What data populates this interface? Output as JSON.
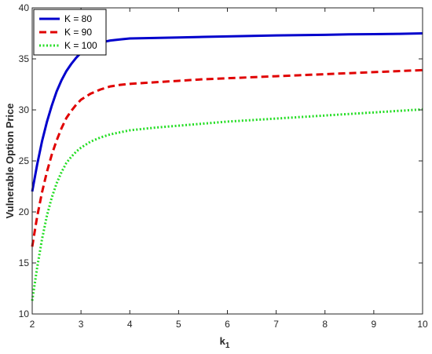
{
  "chart_data": {
    "type": "line",
    "title": "",
    "xlabel": "k",
    "xlabel_subscript": "1",
    "ylabel": "Vulnerable Option Price",
    "xlim": [
      2,
      10
    ],
    "ylim": [
      10,
      40
    ],
    "xticks": [
      2,
      3,
      4,
      5,
      6,
      7,
      8,
      9,
      10
    ],
    "yticks": [
      10,
      15,
      20,
      25,
      30,
      35,
      40
    ],
    "grid": false,
    "legend_position": "top-left",
    "x": [
      2.0,
      2.1,
      2.2,
      2.3,
      2.4,
      2.5,
      2.6,
      2.7,
      2.8,
      2.9,
      3.0,
      3.2,
      3.4,
      3.6,
      3.8,
      4.0,
      4.5,
      5.0,
      5.5,
      6.0,
      6.5,
      7.0,
      7.5,
      8.0,
      8.5,
      9.0,
      9.5,
      10.0
    ],
    "series": [
      {
        "name": "K = 80",
        "color": "#0000cc",
        "style": "solid",
        "values": [
          22.0,
          24.6,
          26.9,
          28.8,
          30.4,
          31.8,
          32.9,
          33.8,
          34.5,
          35.1,
          35.6,
          36.2,
          36.6,
          36.8,
          36.9,
          37.0,
          37.05,
          37.1,
          37.15,
          37.2,
          37.25,
          37.3,
          37.33,
          37.36,
          37.4,
          37.42,
          37.45,
          37.5
        ]
      },
      {
        "name": "K = 90",
        "color": "#e00000",
        "style": "dashed",
        "values": [
          16.6,
          19.5,
          21.9,
          23.9,
          25.6,
          27.0,
          28.2,
          29.2,
          29.9,
          30.5,
          31.0,
          31.6,
          32.0,
          32.3,
          32.45,
          32.55,
          32.7,
          32.85,
          33.0,
          33.1,
          33.2,
          33.3,
          33.4,
          33.5,
          33.6,
          33.7,
          33.8,
          33.9
        ]
      },
      {
        "name": "K = 100",
        "color": "#22dd22",
        "style": "dotted",
        "values": [
          11.3,
          14.5,
          17.3,
          19.6,
          21.4,
          22.8,
          23.9,
          24.8,
          25.4,
          25.9,
          26.3,
          26.9,
          27.3,
          27.6,
          27.8,
          28.0,
          28.25,
          28.45,
          28.65,
          28.85,
          29.0,
          29.15,
          29.3,
          29.45,
          29.6,
          29.75,
          29.9,
          30.05
        ]
      }
    ]
  }
}
